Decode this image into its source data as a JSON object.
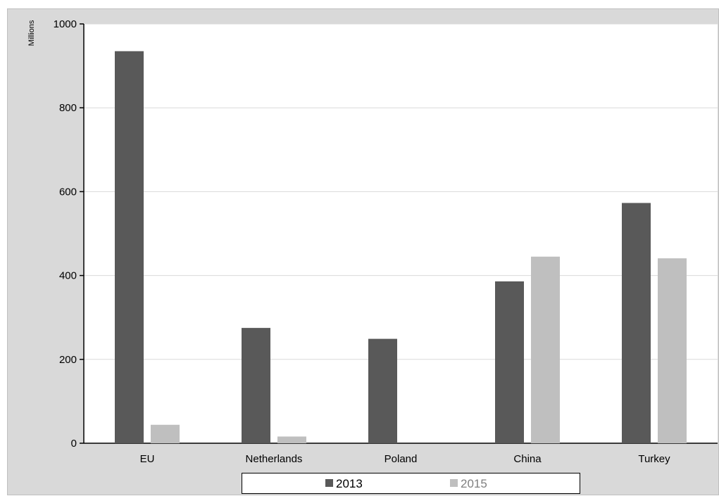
{
  "title": "",
  "colors": {
    "series_2013": "#595959",
    "series_2015": "#bfbfbf",
    "background": "#d9d9d9",
    "plot": "#ffffff"
  },
  "chart_data": {
    "type": "bar",
    "title": "",
    "xlabel": "",
    "ylabel": "Millions",
    "categories": [
      "EU",
      "Netherlands",
      "Poland",
      "China",
      "Turkey"
    ],
    "series": [
      {
        "name": "2013",
        "values": [
          935,
          275,
          249,
          386,
          573
        ]
      },
      {
        "name": "2015",
        "values": [
          44,
          16,
          0,
          445,
          441
        ]
      }
    ],
    "ylim": [
      0,
      1000
    ],
    "yticks": [
      "0",
      "200",
      "400",
      "600",
      "800",
      "1000"
    ],
    "grid": true,
    "legend": "bottom"
  }
}
